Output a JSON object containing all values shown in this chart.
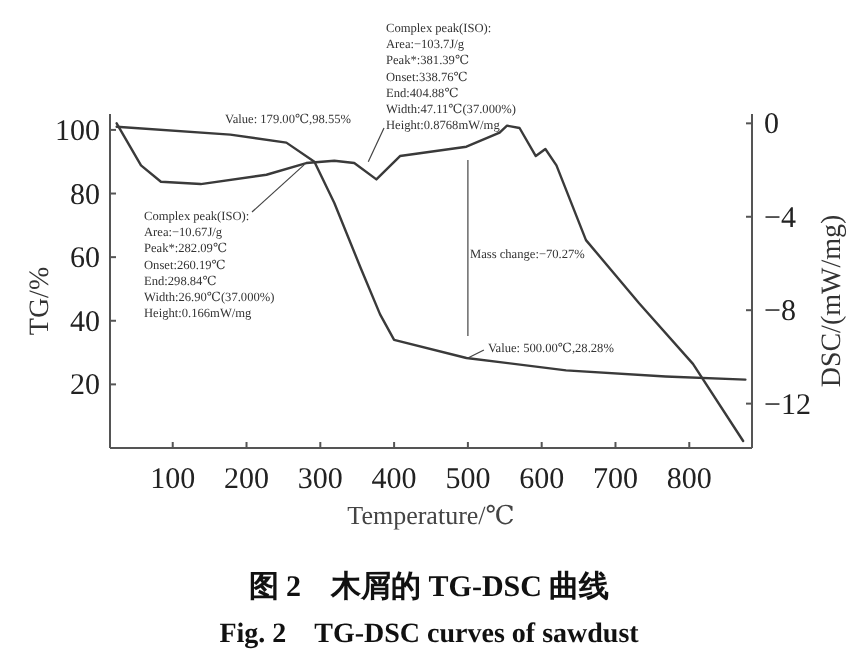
{
  "chart_data": {
    "type": "line",
    "title": "图 2　木屑的 TG-DSC 曲线",
    "subtitle": "Fig. 2　TG-DSC curves of sawdust",
    "xlabel": "Temperature/℃",
    "ylabel": "TG/%",
    "y2label": "DSC/(mW/mg)",
    "xlim": [
      15,
      885
    ],
    "xticks": [
      100,
      200,
      300,
      400,
      500,
      600,
      700,
      800
    ],
    "ylim": [
      0,
      105
    ],
    "yticks": [
      20,
      40,
      60,
      80,
      100
    ],
    "y2lim": [
      -13.9,
      0.4
    ],
    "y2ticks": [
      0,
      -4,
      -8,
      -12
    ],
    "series": [
      {
        "color": "#3a3a3a",
        "x": [
          24,
          178,
          254,
          292,
          319,
          354,
          381,
          400,
          498,
          633,
          768,
          876
        ],
        "values": [
          101,
          98.5,
          96,
          90,
          77,
          57,
          42,
          34,
          28.3,
          24.4,
          22.5,
          21.5
        ]
      },
      {
        "color": "#3a3a3a",
        "axis": "y2",
        "x": [
          24,
          57,
          84,
          138,
          227,
          281,
          319,
          346,
          376,
          408,
          498,
          543,
          553,
          570,
          592,
          605,
          620,
          660,
          732,
          805,
          873
        ],
        "values": [
          0,
          -1.8,
          -2.5,
          -2.6,
          -2.2,
          -1.7,
          -1.6,
          -1.7,
          -2.4,
          -1.4,
          -1.0,
          -0.4,
          -0.1,
          -0.2,
          -1.4,
          -1.1,
          -1.8,
          -5.0,
          -7.7,
          -10.3,
          -13.6
        ]
      }
    ],
    "annotations": [
      {
        "text": "Value: 179.00℃,98.55%",
        "x": 179,
        "y": 98.55
      },
      {
        "text": "Complex peak(ISO):\nArea:−103.7J/g\nPeak*:381.39℃\nOnset:338.76℃\nEnd:404.88℃\nWidth:47.11℃(37.000%)\nHeight:0.8768mW/mg",
        "x": 365,
        "y": 90
      },
      {
        "text": "Complex peak(ISO):\nArea:−10.67J/g\nPeak*:282.09℃\nOnset:260.19℃\nEnd:298.84℃\nWidth:26.90℃(37.000%)\nHeight:0.166mW/mg",
        "x": 278,
        "y": 89
      },
      "Mass change:−70.27%",
      {
        "text": "Value: 500.00℃,28.28%",
        "x": 500,
        "y": 28.28
      }
    ]
  }
}
